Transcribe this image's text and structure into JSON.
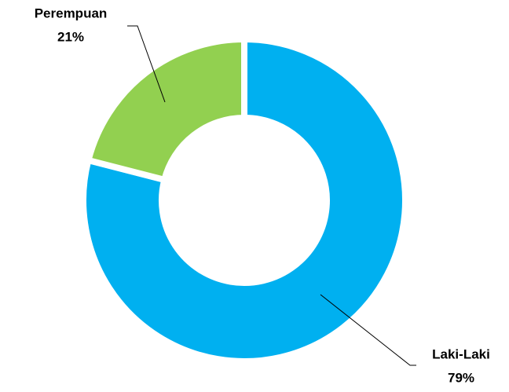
{
  "chart_data": {
    "type": "pie",
    "categories": [
      "Laki-Laki",
      "Perempuan"
    ],
    "values": [
      79,
      21
    ],
    "value_labels": [
      "79%",
      "21%"
    ],
    "colors": [
      "#00b0f0",
      "#92d050"
    ],
    "donut": true
  }
}
